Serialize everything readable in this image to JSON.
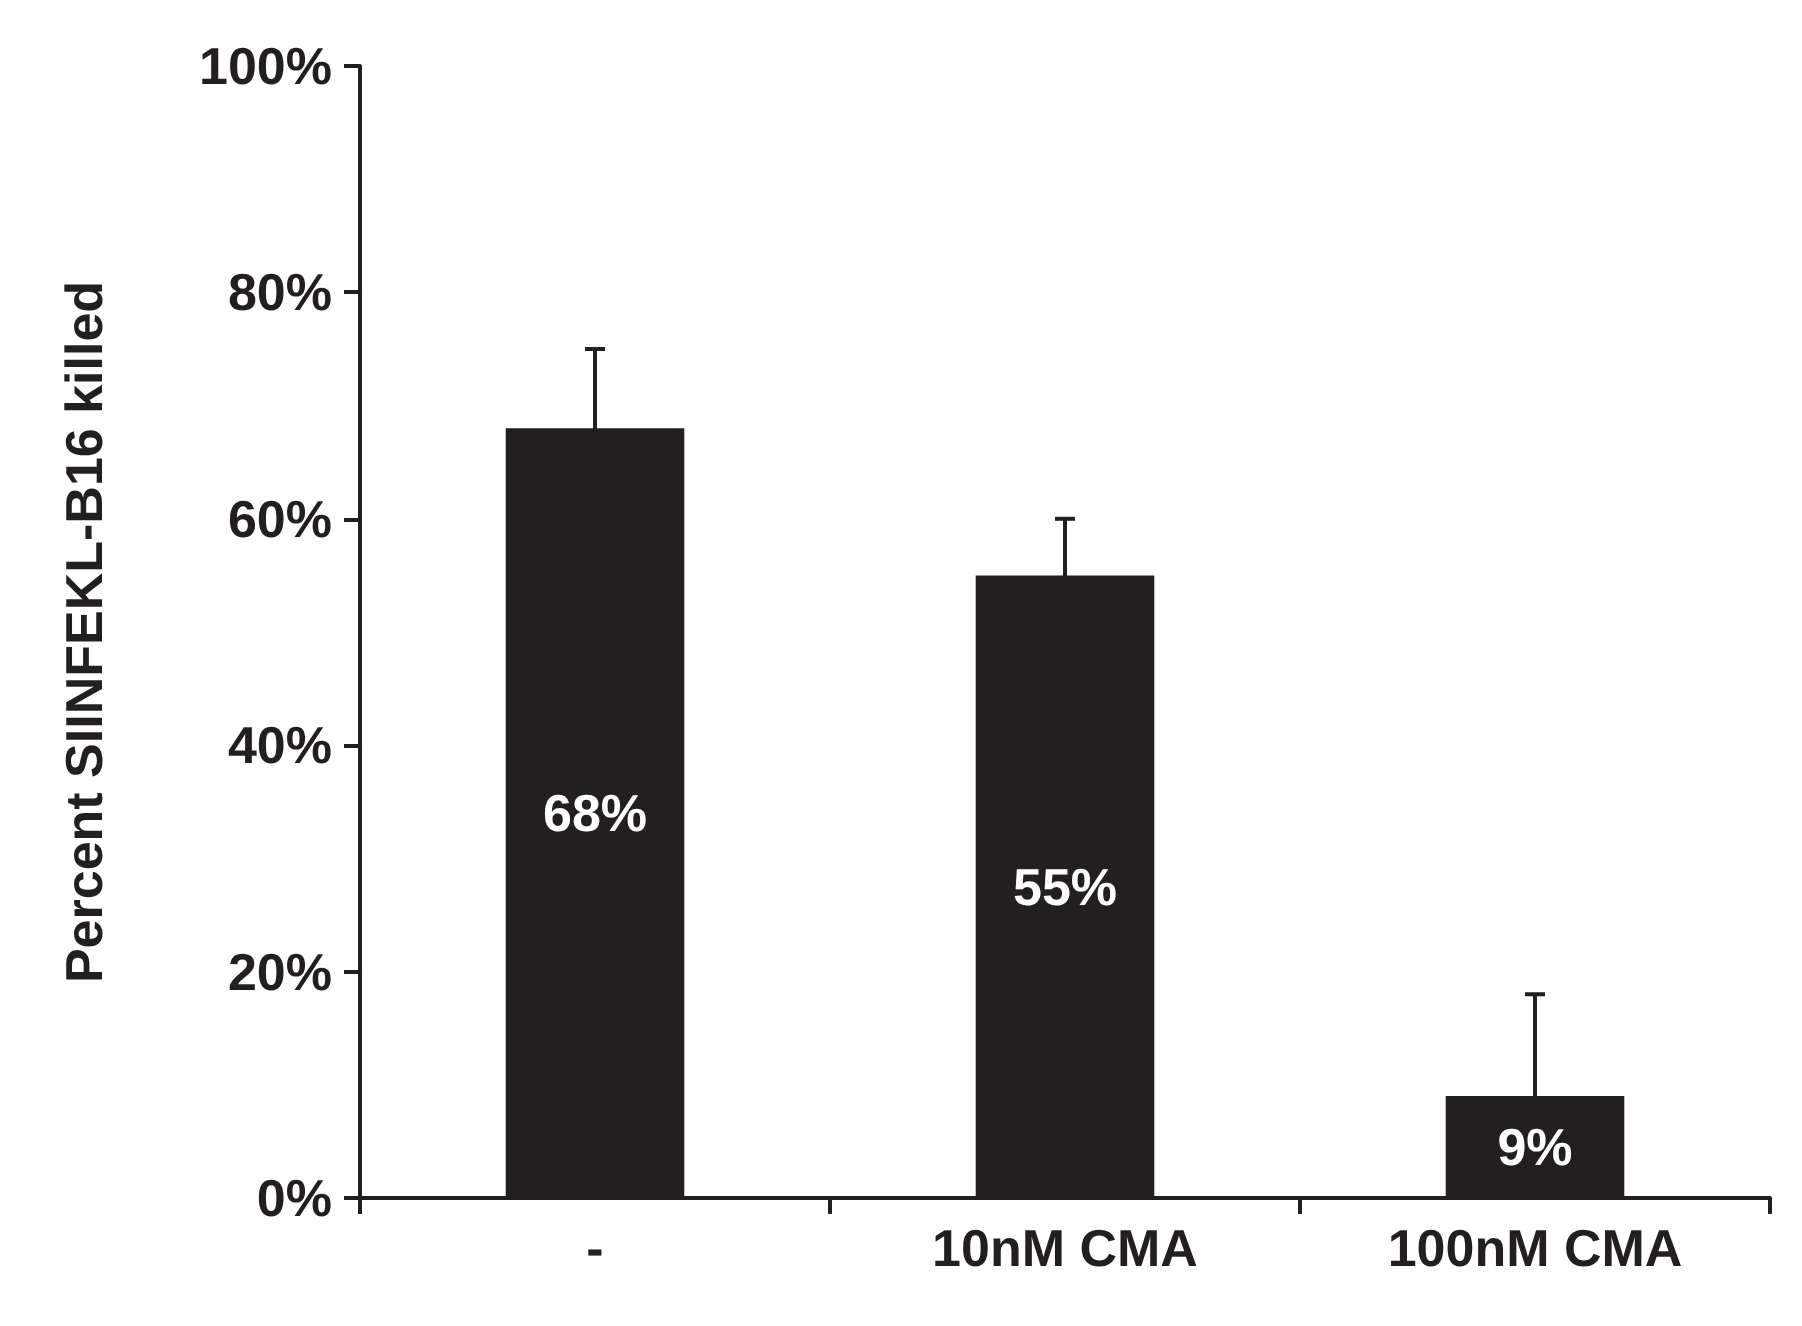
{
  "chart_data": {
    "type": "bar",
    "ylabel": "Percent SIINFEKL-B16 killed",
    "categories": [
      "-",
      "10nM CMA",
      "100nM CMA"
    ],
    "values": [
      68,
      55,
      9
    ],
    "color": "#231f20",
    "errors": [
      7,
      5,
      9
    ],
    "value_labels": [
      "68%",
      "55%",
      "9%"
    ],
    "ylim": [
      0,
      100
    ],
    "yticks": [
      {
        "value": 0,
        "label": "0%"
      },
      {
        "value": 20,
        "label": "20%"
      },
      {
        "value": 40,
        "label": "40%"
      },
      {
        "value": 60,
        "label": "60%"
      },
      {
        "value": 80,
        "label": "80%"
      },
      {
        "value": 100,
        "label": "100%"
      }
    ],
    "grid": false
  }
}
